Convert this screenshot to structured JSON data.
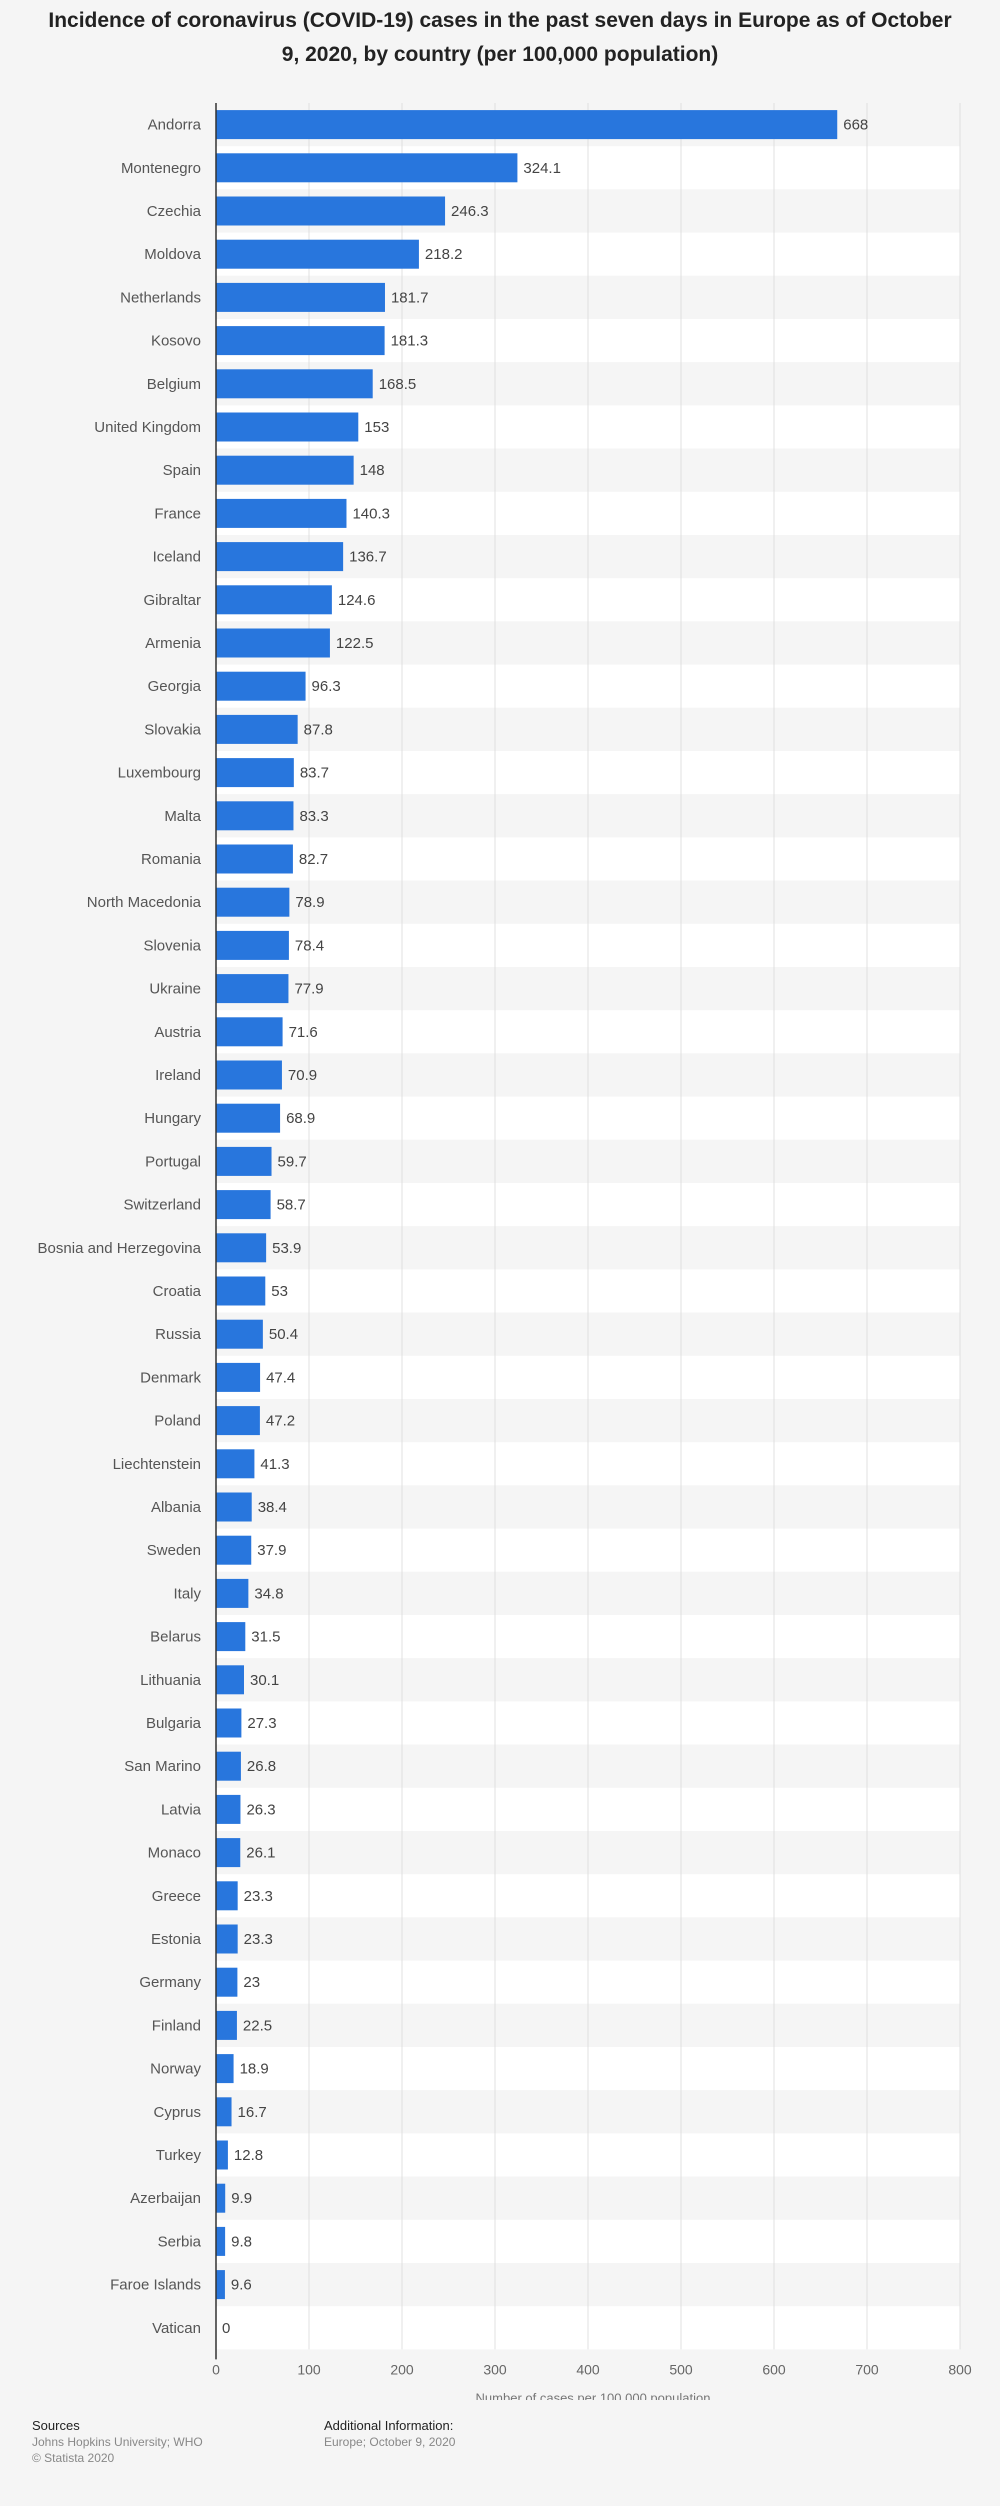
{
  "title": "Incidence of coronavirus (COVID-19) cases in the past seven days in Europe as of October 9, 2020, by country (per 100,000 population)",
  "footer": {
    "sources_label": "Sources",
    "sources_text": "Johns Hopkins University; WHO",
    "copyright": "© Statista 2020",
    "additional_label": "Additional Information:",
    "additional_text": "Europe; October 9, 2020"
  },
  "colors": {
    "bar": "#2876dd",
    "background": "#f5f5f5",
    "row_alt": "#ffffff"
  },
  "chart_data": {
    "type": "bar",
    "orientation": "horizontal",
    "title": "Incidence of coronavirus (COVID-19) cases in the past seven days in Europe as of October 9, 2020, by country (per 100,000 population)",
    "xlabel": "Number of cases per 100,000 population",
    "ylabel": "",
    "xlim": [
      0,
      800
    ],
    "xticks": [
      0,
      100,
      200,
      300,
      400,
      500,
      600,
      700,
      800
    ],
    "grid": true,
    "categories": [
      "Andorra",
      "Montenegro",
      "Czechia",
      "Moldova",
      "Netherlands",
      "Kosovo",
      "Belgium",
      "United Kingdom",
      "Spain",
      "France",
      "Iceland",
      "Gibraltar",
      "Armenia",
      "Georgia",
      "Slovakia",
      "Luxembourg",
      "Malta",
      "Romania",
      "North Macedonia",
      "Slovenia",
      "Ukraine",
      "Austria",
      "Ireland",
      "Hungary",
      "Portugal",
      "Switzerland",
      "Bosnia and Herzegovina",
      "Croatia",
      "Russia",
      "Denmark",
      "Poland",
      "Liechtenstein",
      "Albania",
      "Sweden",
      "Italy",
      "Belarus",
      "Lithuania",
      "Bulgaria",
      "San Marino",
      "Latvia",
      "Monaco",
      "Greece",
      "Estonia",
      "Germany",
      "Finland",
      "Norway",
      "Cyprus",
      "Turkey",
      "Azerbaijan",
      "Serbia",
      "Faroe Islands",
      "Vatican"
    ],
    "values": [
      668,
      324.1,
      246.3,
      218.2,
      181.7,
      181.3,
      168.5,
      153,
      148,
      140.3,
      136.7,
      124.6,
      122.5,
      96.3,
      87.8,
      83.7,
      83.3,
      82.7,
      78.9,
      78.4,
      77.9,
      71.6,
      70.9,
      68.9,
      59.7,
      58.7,
      53.9,
      53,
      50.4,
      47.4,
      47.2,
      41.3,
      38.4,
      37.9,
      34.8,
      31.5,
      30.1,
      27.3,
      26.8,
      26.3,
      26.1,
      23.3,
      23.3,
      23,
      22.5,
      18.9,
      16.7,
      12.8,
      9.9,
      9.8,
      9.6,
      0
    ]
  }
}
